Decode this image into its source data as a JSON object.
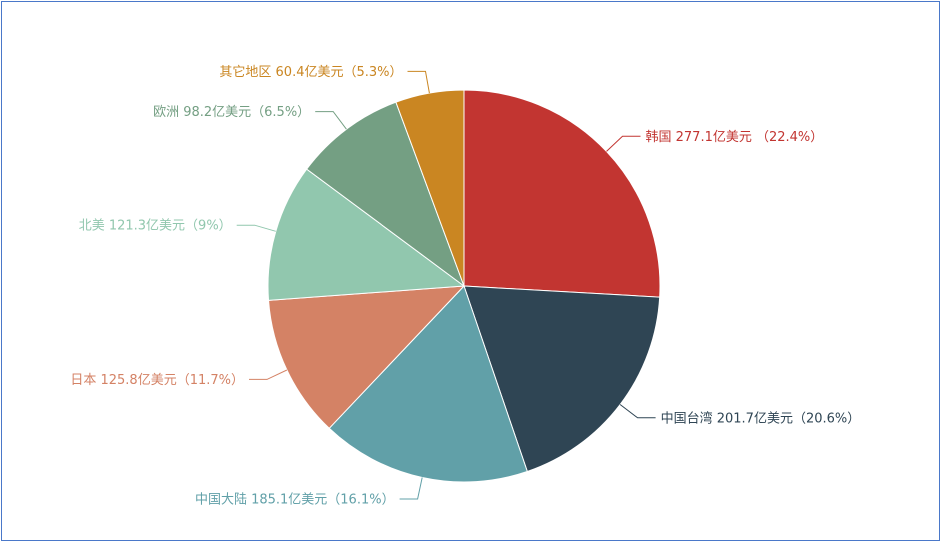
{
  "chart_data": {
    "type": "pie",
    "title": "",
    "slices": [
      {
        "name": "韩国",
        "value": 277.1,
        "label": "韩国 277.1亿美元 （22.4%）",
        "color": "#c23531"
      },
      {
        "name": "中国台湾",
        "value": 201.7,
        "label": "中国台湾 201.7亿美元（20.6%）",
        "color": "#2f4554"
      },
      {
        "name": "中国大陆",
        "value": 185.1,
        "label": "中国大陆 185.1亿美元（16.1%）",
        "color": "#61a0a8"
      },
      {
        "name": "日本",
        "value": 125.8,
        "label": "日本 125.8亿美元（11.7%）",
        "color": "#d48265"
      },
      {
        "name": "北美",
        "value": 121.3,
        "label": "北美 121.3亿美元（9%）",
        "color": "#91c7ae"
      },
      {
        "name": "欧洲",
        "value": 98.2,
        "label": "欧洲 98.2亿美元（6.5%）",
        "color": "#749f83"
      },
      {
        "name": "其它地区",
        "value": 60.4,
        "label": "其它地区 60.4亿美元（5.3%）",
        "color": "#ca8622"
      }
    ]
  }
}
